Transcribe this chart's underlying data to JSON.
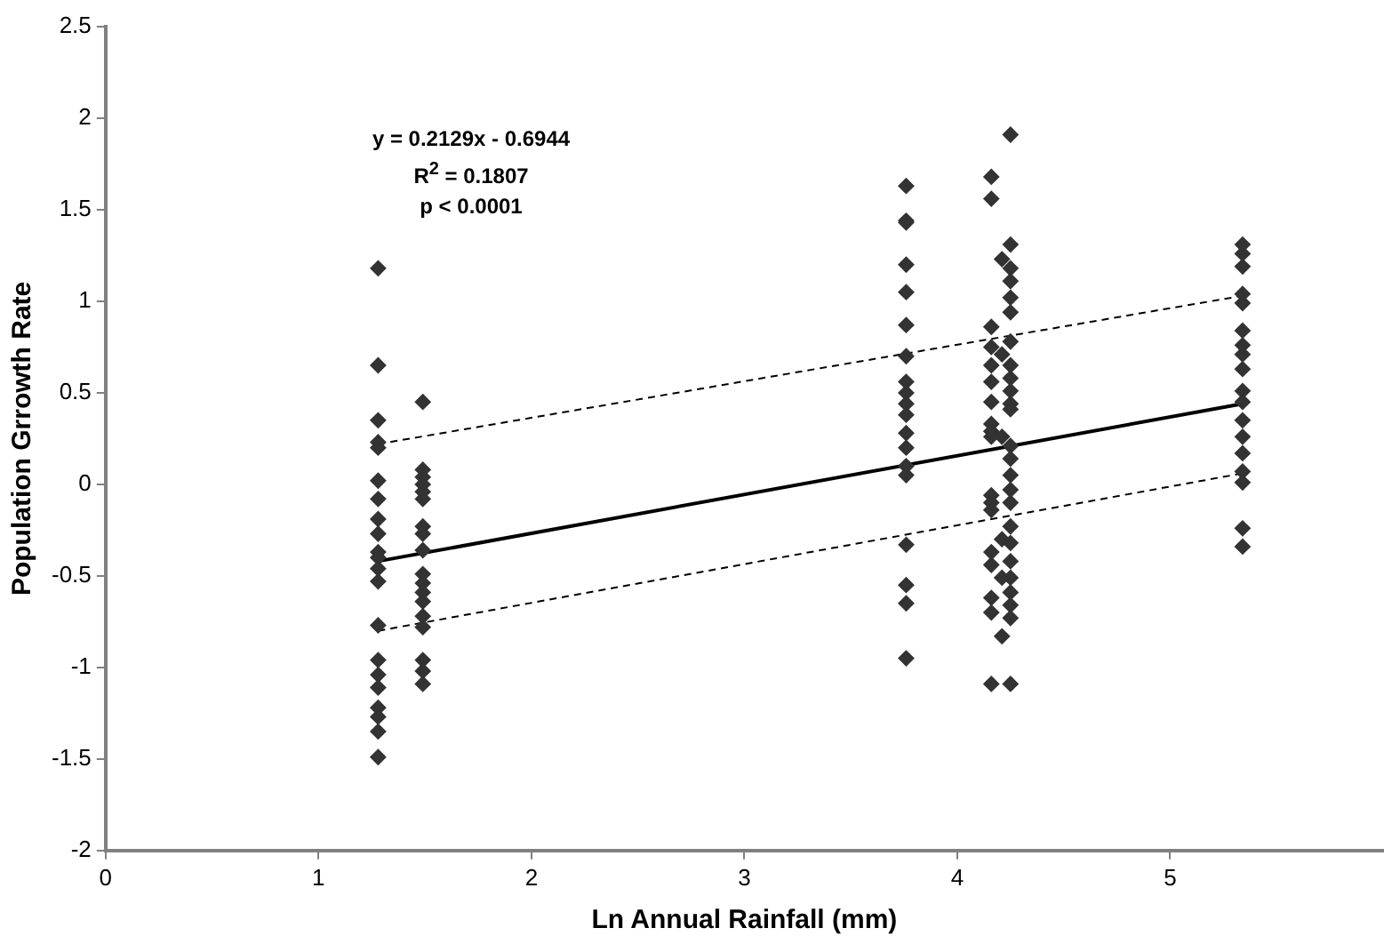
{
  "chart_data": {
    "type": "scatter",
    "xlabel": "Ln Annual Rainfall (mm)",
    "ylabel": "Population Grrowth Rate",
    "xlim": [
      0,
      6
    ],
    "ylim": [
      -2,
      2.5
    ],
    "xticks": [
      0,
      1,
      2,
      3,
      4,
      5
    ],
    "yticks": [
      -2,
      -1.5,
      -1,
      -0.5,
      0,
      0.5,
      1,
      1.5,
      2,
      2.5
    ],
    "grid": false,
    "legend": false,
    "marker": "diamond",
    "annotations": [
      "y = 0.2129x - 0.6944",
      "R$^{2}$ = 0.1807",
      "p < 0.0001"
    ],
    "series": [
      {
        "color": "#333333",
        "x": [
          1.28,
          1.28,
          1.28,
          1.28,
          1.28,
          1.28,
          1.28,
          1.28,
          1.28,
          1.28,
          1.28,
          1.28,
          1.28,
          1.28,
          1.28,
          1.28,
          1.28,
          1.28,
          1.28,
          1.28,
          1.28
        ],
        "values": [
          1.18,
          0.65,
          0.35,
          0.23,
          0.2,
          0.02,
          -0.08,
          -0.19,
          -0.27,
          -0.37,
          -0.4,
          -0.46,
          -0.53,
          -0.77,
          -0.96,
          -1.04,
          -1.11,
          -1.22,
          -1.27,
          -1.35,
          -1.49
        ]
      },
      {
        "color": "#333333",
        "x": [
          1.49,
          1.49,
          1.49,
          1.49,
          1.49,
          1.49,
          1.49,
          1.49,
          1.49,
          1.49,
          1.49,
          1.49,
          1.49,
          1.49,
          1.49,
          1.49,
          1.49,
          1.49
        ],
        "values": [
          0.45,
          0.08,
          0.04,
          0,
          -0.04,
          -0.08,
          -0.23,
          -0.27,
          -0.36,
          -0.49,
          -0.54,
          -0.59,
          -0.64,
          -0.72,
          -0.78,
          -0.96,
          -1.02,
          -1.09
        ]
      },
      {
        "color": "#333333",
        "x": [
          3.76,
          3.76,
          3.76,
          3.76,
          3.76,
          3.76,
          3.76,
          3.76,
          3.76,
          3.76,
          3.76,
          3.76,
          3.76,
          3.76,
          3.76,
          3.76,
          3.76,
          3.76,
          3.76
        ],
        "values": [
          1.63,
          1.44,
          1.43,
          1.2,
          1.05,
          0.87,
          0.7,
          0.56,
          0.5,
          0.44,
          0.38,
          0.28,
          0.2,
          0.1,
          0.05,
          -0.33,
          -0.55,
          -0.65,
          -0.95
        ]
      },
      {
        "color": "#333333",
        "x": [
          4.16,
          4.16,
          4.16,
          4.16,
          4.16,
          4.16,
          4.16,
          4.16,
          4.16,
          4.16,
          4.16,
          4.16,
          4.16,
          4.16,
          4.16,
          4.16,
          4.16,
          4.16
        ],
        "values": [
          1.68,
          1.56,
          0.86,
          0.75,
          0.65,
          0.56,
          0.45,
          0.33,
          0.29,
          0.26,
          -0.06,
          -0.1,
          -0.14,
          -0.37,
          -0.44,
          -0.62,
          -0.7,
          -1.09
        ]
      },
      {
        "color": "#333333",
        "x": [
          4.21,
          4.21,
          4.21,
          4.21,
          4.21,
          4.21
        ],
        "values": [
          1.23,
          0.71,
          0.26,
          -0.3,
          -0.51,
          -0.83
        ]
      },
      {
        "color": "#333333",
        "x": [
          4.25,
          4.25,
          4.25,
          4.25,
          4.25,
          4.25,
          4.25,
          4.25,
          4.25,
          4.25,
          4.25,
          4.25,
          4.25,
          4.25,
          4.25,
          4.25,
          4.25,
          4.25,
          4.25,
          4.25,
          4.25,
          4.25,
          4.25,
          4.25,
          4.25
        ],
        "values": [
          1.91,
          1.31,
          1.18,
          1.11,
          1.02,
          0.94,
          0.78,
          0.65,
          0.58,
          0.51,
          0.44,
          0.41,
          0.21,
          0.14,
          0.05,
          -0.03,
          -0.1,
          -0.23,
          -0.32,
          -0.42,
          -0.51,
          -0.59,
          -0.66,
          -0.73,
          -1.09
        ]
      },
      {
        "color": "#333333",
        "x": [
          5.34,
          5.34,
          5.34,
          5.34,
          5.34,
          5.34,
          5.34,
          5.34,
          5.34,
          5.34,
          5.34,
          5.34,
          5.34,
          5.34,
          5.34,
          5.34,
          5.34,
          5.34
        ],
        "values": [
          1.31,
          1.26,
          1.19,
          1.04,
          0.99,
          0.84,
          0.76,
          0.71,
          0.63,
          0.51,
          0.45,
          0.35,
          0.26,
          0.17,
          0.07,
          0.01,
          -0.24,
          -0.34
        ]
      },
      {
        "type": "line",
        "color": "#000000",
        "line_style": "solid",
        "marker": "none",
        "x": [
          1.28,
          5.34
        ],
        "values": [
          -0.42,
          0.44
        ]
      },
      {
        "type": "line",
        "color": "#000000",
        "line_style": "dashed",
        "marker": "none",
        "x": [
          1.28,
          5.34
        ],
        "values": [
          0.22,
          1.03
        ]
      },
      {
        "type": "line",
        "color": "#000000",
        "line_style": "dashed",
        "marker": "none",
        "x": [
          1.28,
          5.34
        ],
        "values": [
          -0.8,
          0.06
        ]
      }
    ]
  }
}
